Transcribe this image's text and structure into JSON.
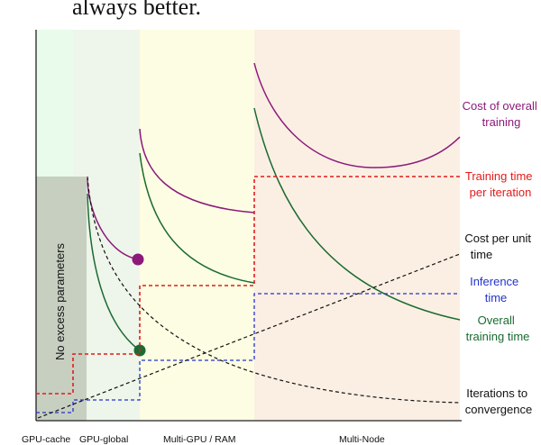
{
  "header": {
    "partial_text": "always better."
  },
  "tiers": [
    {
      "label": "GPU-cache",
      "color": "#e9fbea"
    },
    {
      "label": "GPU-global",
      "color": "#eef5ea"
    },
    {
      "label": "Multi-GPU / RAM",
      "color": "#fdfde3"
    },
    {
      "label": "Multi-Node",
      "color": "#fbefe3"
    }
  ],
  "shaded_region_label": "No excess parameters",
  "shaded_region_color": "#c7cfc1",
  "curves": {
    "cost_overall": {
      "lines": [
        "Cost of overall",
        "training"
      ],
      "color": "#8b1a7a"
    },
    "training_time_per_iter": {
      "lines": [
        "Training time",
        "per iteration"
      ],
      "color": "#e31b1b"
    },
    "cost_per_unit_time": {
      "lines": [
        "Cost per unit",
        "time"
      ],
      "color": "#111111"
    },
    "inference_time": {
      "lines": [
        "Inference",
        "time"
      ],
      "color": "#2233cc"
    },
    "overall_training_time": {
      "lines": [
        "Overall",
        "training time"
      ],
      "color": "#1a6b32"
    },
    "iterations_to_convergence": {
      "lines": [
        "Iterations to",
        "convergence"
      ],
      "color": "#111111"
    }
  }
}
